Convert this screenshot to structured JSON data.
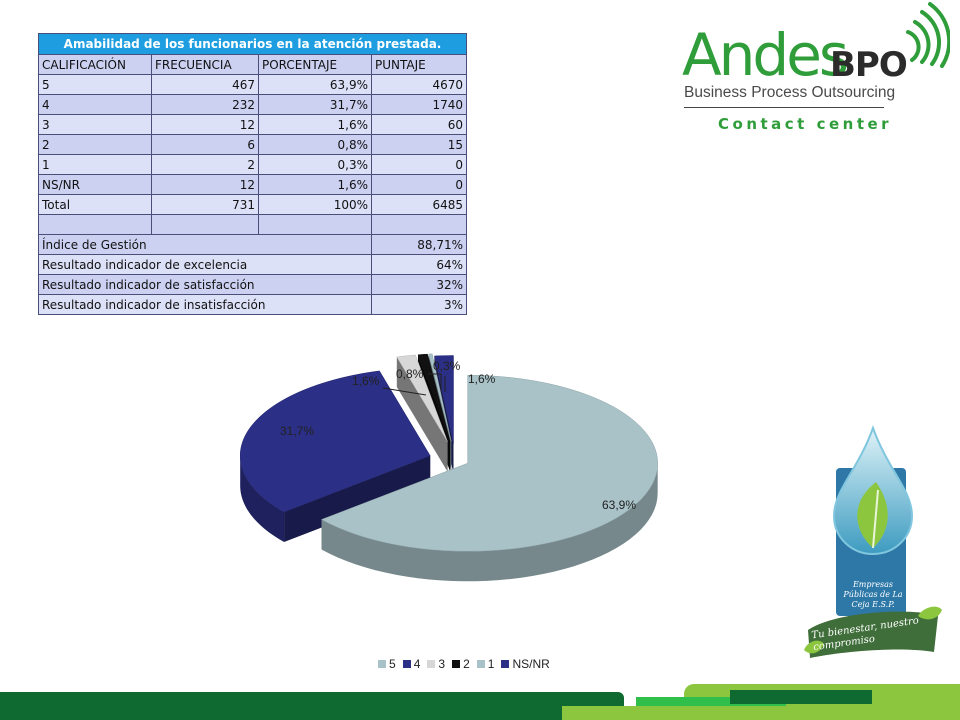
{
  "table": {
    "title": "Amabilidad de los funcionarios en la atención prestada.",
    "headers": [
      "CALIFICACIÓN",
      "FRECUENCIA",
      "PORCENTAJE",
      "PUNTAJE"
    ],
    "rows": [
      [
        "5",
        "467",
        "63,9%",
        "4670"
      ],
      [
        "4",
        "232",
        "31,7%",
        "1740"
      ],
      [
        "3",
        "12",
        "1,6%",
        "60"
      ],
      [
        "2",
        "6",
        "0,8%",
        "15"
      ],
      [
        "1",
        "2",
        "0,3%",
        "0"
      ],
      [
        "NS/NR",
        "12",
        "1,6%",
        "0"
      ],
      [
        "Total",
        "731",
        "100%",
        "6485"
      ]
    ],
    "indicators": [
      [
        "Índice de Gestión",
        "88,71%"
      ],
      [
        "Resultado indicador de excelencia",
        "64%"
      ],
      [
        "Resultado indicador de satisfacción",
        "32%"
      ],
      [
        "Resultado indicador de insatisfacción",
        "3%"
      ]
    ]
  },
  "logo": {
    "brand": "Andes",
    "brand_suffix": "BPO",
    "tagline": "Business Process Outsourcing",
    "subtitle": "Contact center"
  },
  "emblem": {
    "caption": "Empresas Públicas de La Ceja E.S.P.",
    "slogan": "Tu bienestar, nuestro compromiso"
  },
  "chart_data": {
    "type": "pie",
    "title": "",
    "categories": [
      "5",
      "4",
      "3",
      "2",
      "1",
      "NS/NR"
    ],
    "values": [
      63.9,
      31.7,
      1.6,
      0.8,
      0.3,
      1.6
    ],
    "labels": [
      "63,9%",
      "31,7%",
      "1,6%",
      "0,8%",
      "0,3%",
      "1,6%"
    ],
    "colors": [
      "#a8c2c8",
      "#2b2f85",
      "#d7d7d7",
      "#111111",
      "#a8c2c8",
      "#2b2f85"
    ],
    "legend_position": "bottom",
    "style": "3d-exploded"
  }
}
